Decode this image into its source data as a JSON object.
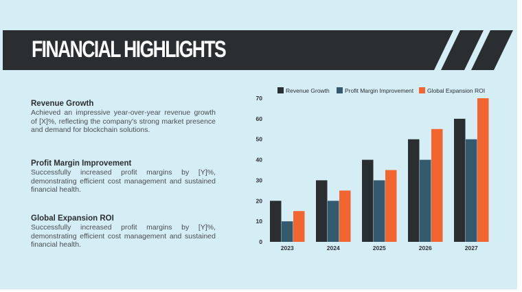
{
  "title": "FINANCIAL HIGHLIGHTS",
  "sections": [
    {
      "heading": "Revenue Growth",
      "body": "Achieved an impressive year-over-year revenue growth of [X]%, reflecting the company's strong market presence and demand for blockchain solutions."
    },
    {
      "heading": "Profit Margin Improvement",
      "body": "Successfully increased profit margins by [Y]%, demonstrating efficient cost management and sustained financial health."
    },
    {
      "heading": "Global Expansion ROI",
      "body": "Successfully increased profit margins by [Y]%, demonstrating efficient cost management and sustained financial health."
    }
  ],
  "colors": {
    "background": "#d5edf5",
    "banner": "#2b2e30"
  },
  "chart_data": {
    "type": "bar",
    "categories": [
      "2023",
      "2024",
      "2025",
      "2026",
      "2027"
    ],
    "series": [
      {
        "name": "Revenue Growth",
        "color": "#2b2e30",
        "values": [
          20,
          30,
          40,
          50,
          60
        ]
      },
      {
        "name": "Profit Margin Improvement",
        "color": "#345a70",
        "values": [
          10,
          20,
          30,
          40,
          50
        ]
      },
      {
        "name": "Global Expansion ROI",
        "color": "#f26531",
        "values": [
          15,
          25,
          35,
          55,
          70
        ]
      }
    ],
    "yticks": [
      0,
      10,
      20,
      30,
      40,
      50,
      60,
      70
    ],
    "ylim": [
      0,
      70
    ],
    "legend": "top",
    "grid": false
  }
}
